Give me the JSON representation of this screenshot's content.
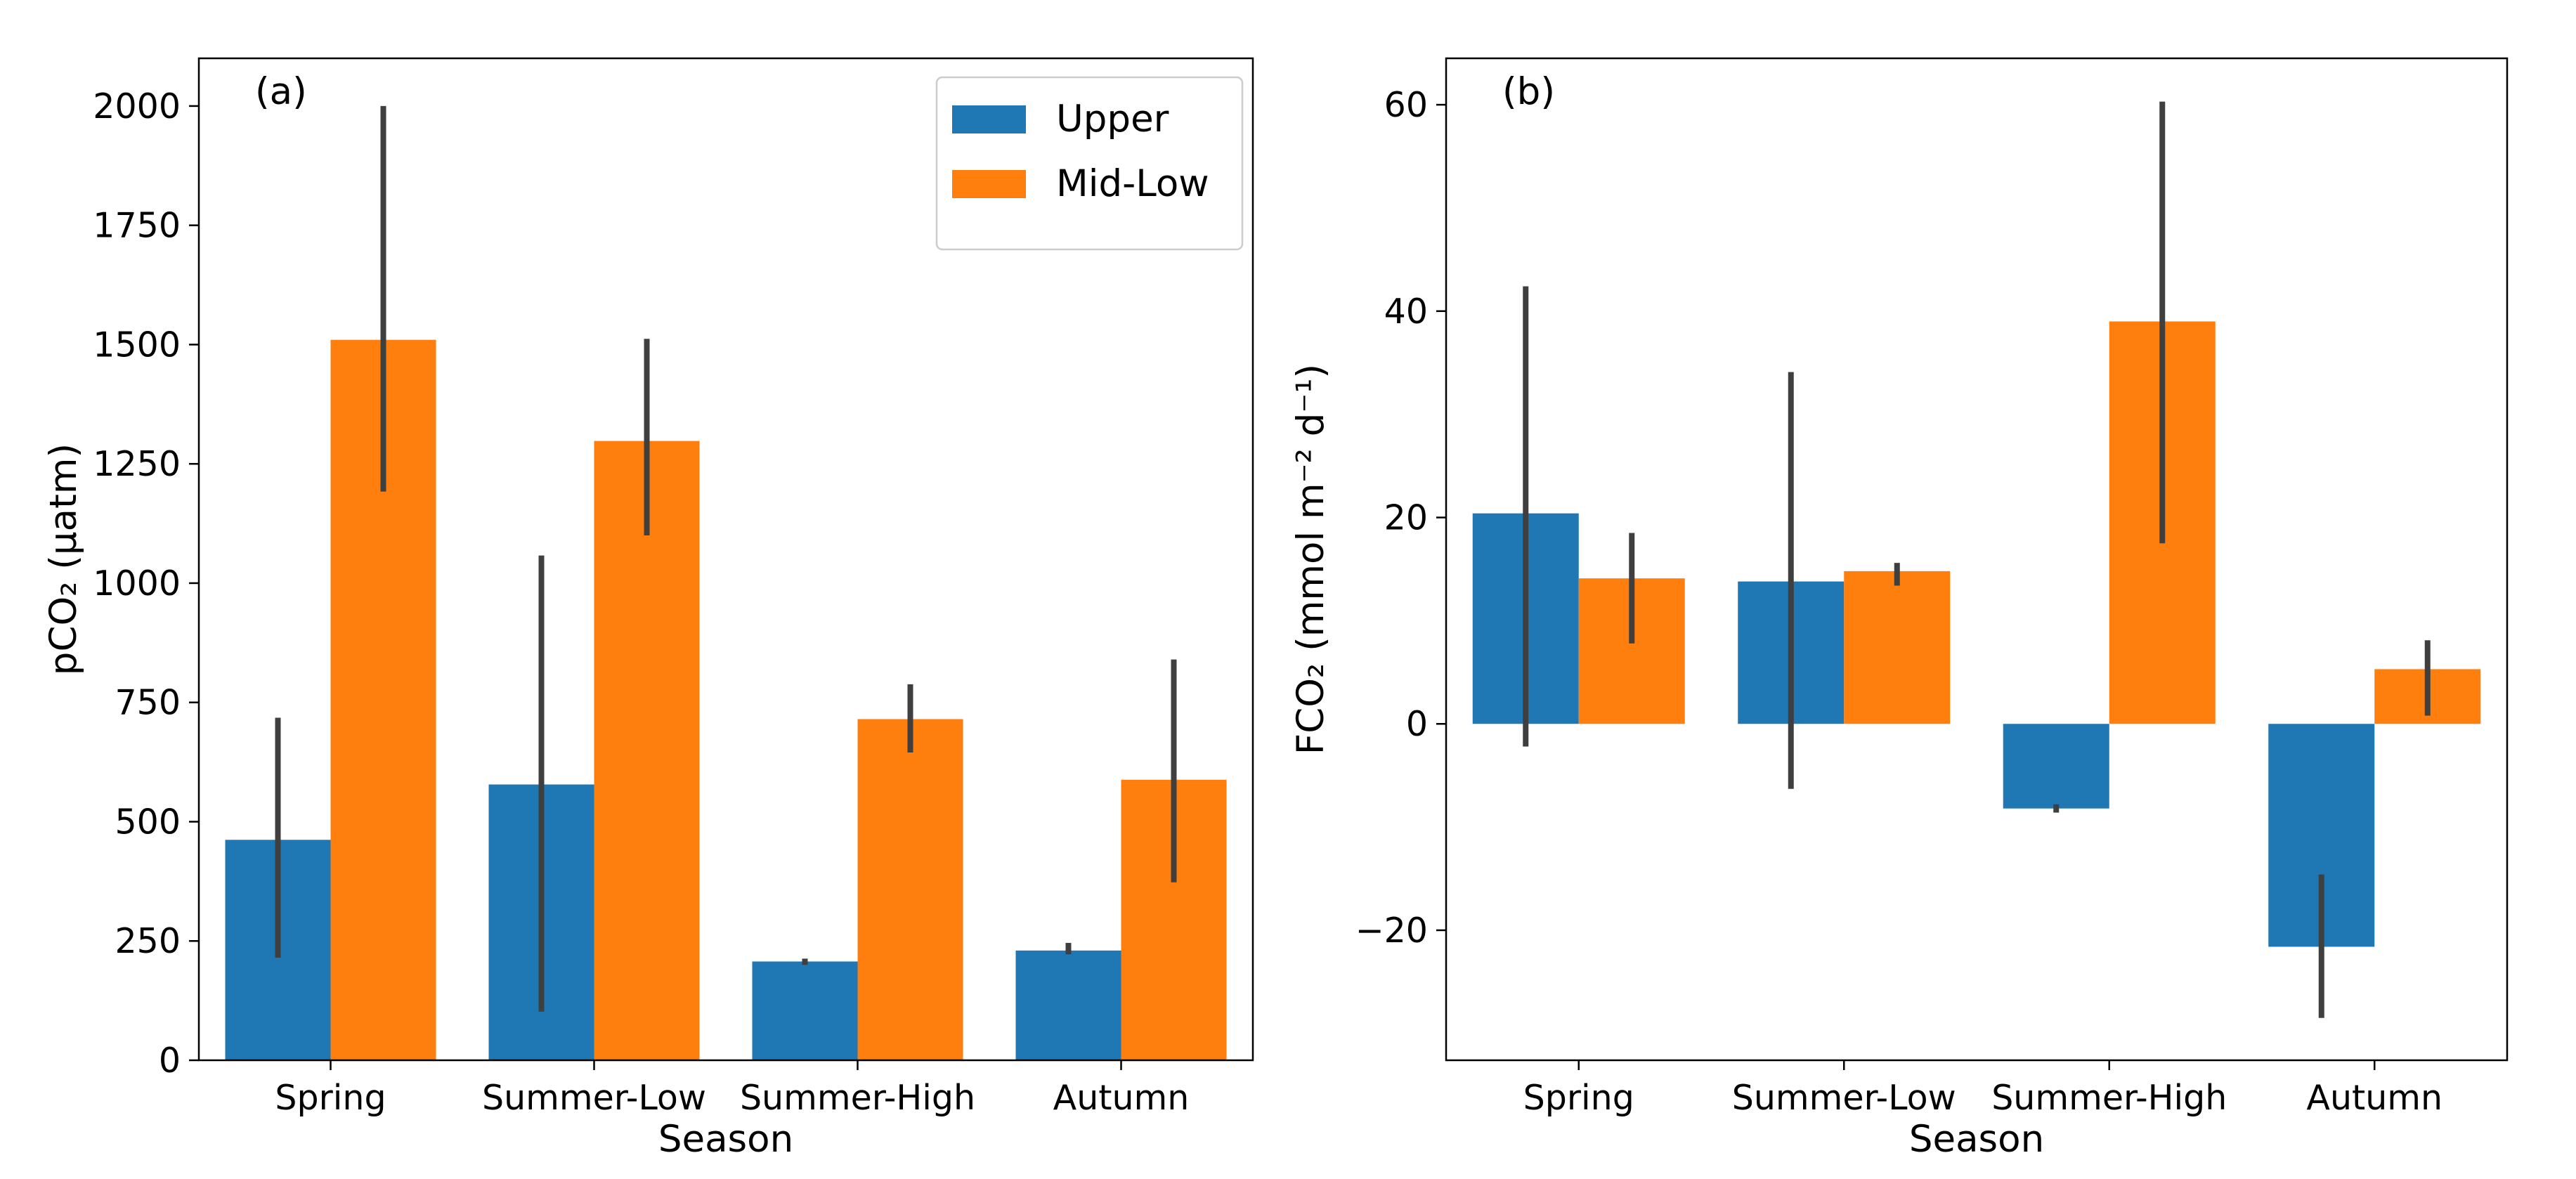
{
  "colors": {
    "upper": "#1f77b4",
    "midlow": "#ff7f0e",
    "error_bar": "#3f3f3f",
    "axes": "#000000"
  },
  "chart_data": [
    {
      "type": "bar",
      "panel_label": "(a)",
      "xlabel": "Season",
      "ylabel": "pCO₂ (µatm)",
      "categories": [
        "Spring",
        "Summer-Low",
        "Summer-High",
        "Autumn"
      ],
      "ylim": [
        0,
        2100
      ],
      "yticks": [
        0,
        250,
        500,
        750,
        1000,
        1250,
        1500,
        1750,
        2000
      ],
      "legend": {
        "position": "top-right"
      },
      "series": [
        {
          "name": "Upper",
          "values": [
            462,
            578,
            207,
            230
          ],
          "err_low": [
            215,
            102,
            200,
            222
          ],
          "err_high": [
            718,
            1058,
            213,
            246
          ]
        },
        {
          "name": "Mid-Low",
          "values": [
            1510,
            1298,
            715,
            588
          ],
          "err_low": [
            1192,
            1100,
            645,
            373
          ],
          "err_high": [
            2000,
            1512,
            788,
            840
          ]
        }
      ]
    },
    {
      "type": "bar",
      "panel_label": "(b)",
      "xlabel": "Season",
      "ylabel": "FCO₂ (mmol m⁻² d⁻¹)",
      "categories": [
        "Spring",
        "Summer-Low",
        "Summer-High",
        "Autumn"
      ],
      "ylim": [
        -32.6,
        64.5
      ],
      "yticks": [
        -20,
        0,
        20,
        40,
        60
      ],
      "series": [
        {
          "name": "Upper",
          "values": [
            20.4,
            13.8,
            -8.2,
            -21.6
          ],
          "err_low": [
            -2.2,
            -6.3,
            -8.6,
            -28.5
          ],
          "err_high": [
            42.4,
            34.1,
            -7.8,
            -14.6
          ]
        },
        {
          "name": "Mid-Low",
          "values": [
            14.1,
            14.8,
            39.0,
            5.3
          ],
          "err_low": [
            7.8,
            13.4,
            17.5,
            0.8
          ],
          "err_high": [
            18.5,
            15.6,
            60.3,
            8.1
          ]
        }
      ]
    }
  ]
}
